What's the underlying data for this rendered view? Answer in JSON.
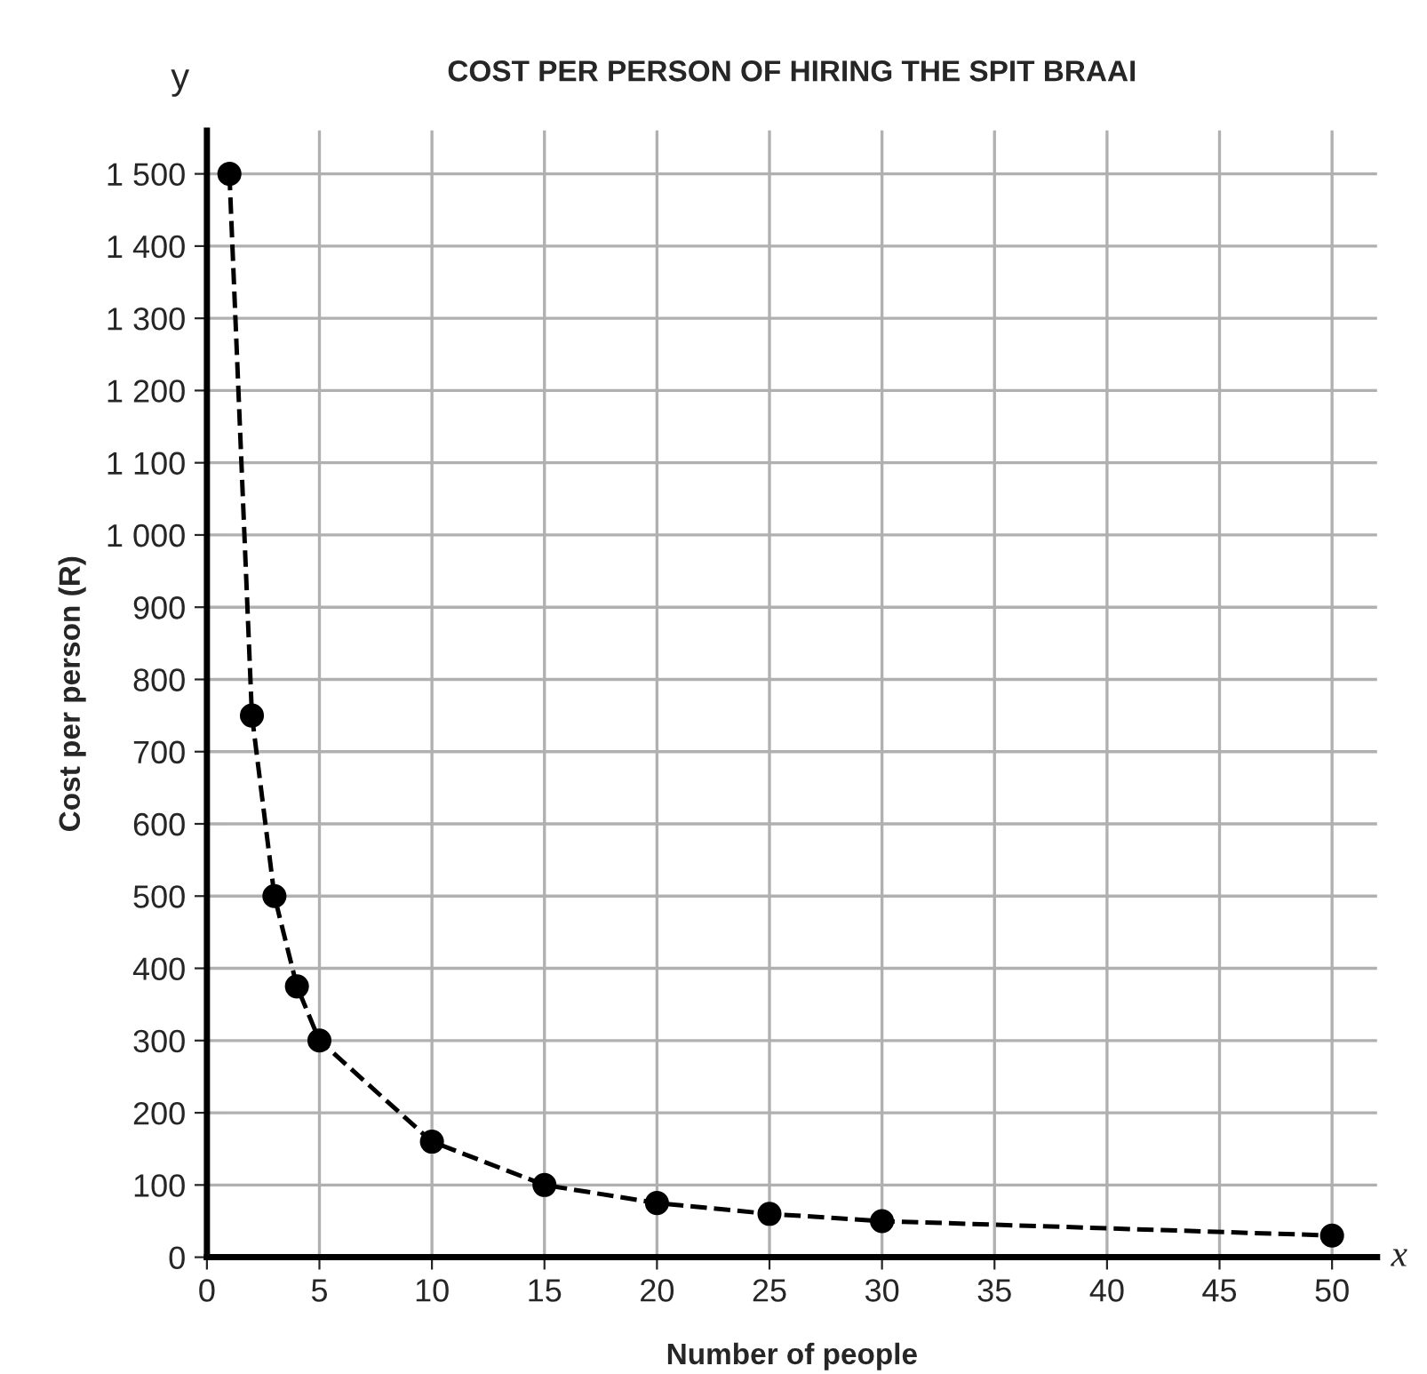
{
  "chart_data": {
    "type": "line",
    "title": "COST PER PERSON OF HIRING THE SPIT BRAAI",
    "xlabel": "Number of people",
    "ylabel": "Cost per person (R)",
    "annotations": [
      "x",
      "y"
    ],
    "x": [
      1,
      2,
      3,
      4,
      5,
      10,
      15,
      20,
      25,
      30,
      50
    ],
    "series": [
      {
        "color": "#000000",
        "values": [
          1500,
          750,
          500,
          375,
          300,
          160,
          100,
          75,
          60,
          50,
          30
        ]
      }
    ],
    "marker": "circle",
    "line_style": "dashed",
    "grid": true,
    "xlim": [
      0,
      52
    ],
    "xticks": [
      0,
      5,
      10,
      15,
      20,
      25,
      30,
      35,
      40,
      45,
      50
    ],
    "ylim": [
      0,
      1560
    ],
    "yticks": [
      0,
      100,
      200,
      300,
      400,
      500,
      600,
      700,
      800,
      900,
      {
        "value": 1000,
        "label": "1 000"
      },
      {
        "value": 1100,
        "label": "1 100"
      },
      {
        "value": 1200,
        "label": "1 200"
      },
      {
        "value": 1300,
        "label": "1 300"
      },
      {
        "value": 1400,
        "label": "1 400"
      },
      {
        "value": 1500,
        "label": "1 500"
      }
    ]
  }
}
